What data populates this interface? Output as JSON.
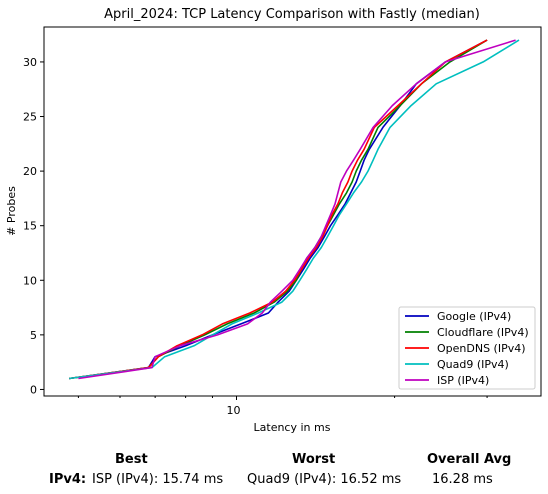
{
  "chart_data": {
    "type": "line",
    "title": "April_2024: TCP Latency Comparison with Fastly (median)",
    "xlabel": "Latency in ms",
    "ylabel": "# Probes",
    "xscale": "log",
    "xlim": [
      4.3,
      38
    ],
    "ylim": [
      -0.6,
      33.2
    ],
    "x_tick_labels": [
      {
        "value": 10,
        "label": "10"
      }
    ],
    "y_ticks": [
      0,
      5,
      10,
      15,
      20,
      25,
      30
    ],
    "legend_position": "lower-right",
    "grid": false,
    "series": [
      {
        "name": "Google (IPv4)",
        "color": "#0000bf",
        "x": [
          4.8,
          6.8,
          7.0,
          8.0,
          9.0,
          10.2,
          11.5,
          12.0,
          12.6,
          13.0,
          13.4,
          13.8,
          14.3,
          14.7,
          15.1,
          15.6,
          16.1,
          16.5,
          16.9,
          17.2,
          17.5,
          17.9,
          19.0,
          20.5,
          22.0,
          25.0,
          30.0
        ],
        "y": [
          1,
          2,
          3,
          4,
          5,
          6,
          7,
          8,
          9,
          10,
          11,
          12,
          13,
          14,
          15,
          16,
          17,
          18,
          19,
          20,
          21,
          22,
          24,
          26,
          28,
          30,
          32
        ]
      },
      {
        "name": "Cloudflare (IPv4)",
        "color": "#008000",
        "x": [
          4.8,
          6.8,
          7.1,
          7.8,
          8.7,
          9.6,
          10.8,
          11.8,
          12.5,
          13.0,
          13.3,
          13.6,
          14.1,
          14.5,
          14.9,
          15.3,
          15.7,
          16.2,
          16.6,
          16.9,
          17.3,
          17.8,
          18.6,
          20.5,
          22.5,
          25.5,
          30.0
        ],
        "y": [
          1,
          2,
          3,
          4,
          5,
          6,
          7,
          8,
          9,
          10,
          11,
          12,
          13,
          14,
          15,
          16,
          17,
          18,
          19,
          20,
          21,
          22,
          24,
          26,
          28,
          30,
          32
        ]
      },
      {
        "name": "OpenDNS (IPv4)",
        "color": "#ff0000",
        "x": [
          4.8,
          6.8,
          7.1,
          7.7,
          8.6,
          9.4,
          10.6,
          11.7,
          12.4,
          12.9,
          13.3,
          13.7,
          14.2,
          14.6,
          14.9,
          15.2,
          15.6,
          15.9,
          16.3,
          16.6,
          17.0,
          17.5,
          18.3,
          20.3,
          22.5,
          25.0,
          30.0
        ],
        "y": [
          1,
          2,
          3,
          4,
          5,
          6,
          7,
          8,
          9,
          10,
          11,
          12,
          13,
          14,
          15,
          16,
          17,
          18,
          19,
          20,
          21,
          22,
          24,
          26,
          28,
          30,
          32
        ]
      },
      {
        "name": "Quad9 (IPv4)",
        "color": "#00bfbf",
        "x": [
          4.8,
          6.9,
          7.3,
          8.3,
          9.0,
          9.8,
          11.0,
          12.2,
          12.8,
          13.2,
          13.6,
          14.0,
          14.5,
          14.9,
          15.3,
          15.7,
          16.2,
          16.7,
          17.3,
          17.8,
          18.2,
          18.6,
          19.6,
          21.5,
          24.0,
          29.5,
          34.5
        ],
        "y": [
          1,
          2,
          3,
          4,
          5,
          6,
          7,
          8,
          9,
          10,
          11,
          12,
          13,
          14,
          15,
          16,
          17,
          18,
          19,
          20,
          21,
          22,
          24,
          26,
          28,
          30,
          32
        ]
      },
      {
        "name": "ISP (IPv4)",
        "color": "#bf00bf",
        "x": [
          5.0,
          6.9,
          7.0,
          7.8,
          9.2,
          10.5,
          11.2,
          11.6,
          12.2,
          12.8,
          13.2,
          13.6,
          14.1,
          14.5,
          14.8,
          15.1,
          15.4,
          15.6,
          15.8,
          16.2,
          16.7,
          17.2,
          18.2,
          19.8,
          22.0,
          25.0,
          34.0
        ],
        "y": [
          1,
          2,
          3,
          4,
          5,
          6,
          7,
          8,
          9,
          10,
          11,
          12,
          13,
          14,
          15,
          16,
          17,
          18,
          19,
          20,
          21,
          22,
          24,
          26,
          28,
          30,
          32
        ]
      }
    ]
  },
  "summary": {
    "best_header": "Best",
    "worst_header": "Worst",
    "avg_header": "Overall Avg",
    "row_label": "IPv4:",
    "best_value": "ISP (IPv4): 15.74 ms",
    "worst_value": "Quad9 (IPv4): 16.52 ms",
    "avg_value": "16.28 ms"
  }
}
